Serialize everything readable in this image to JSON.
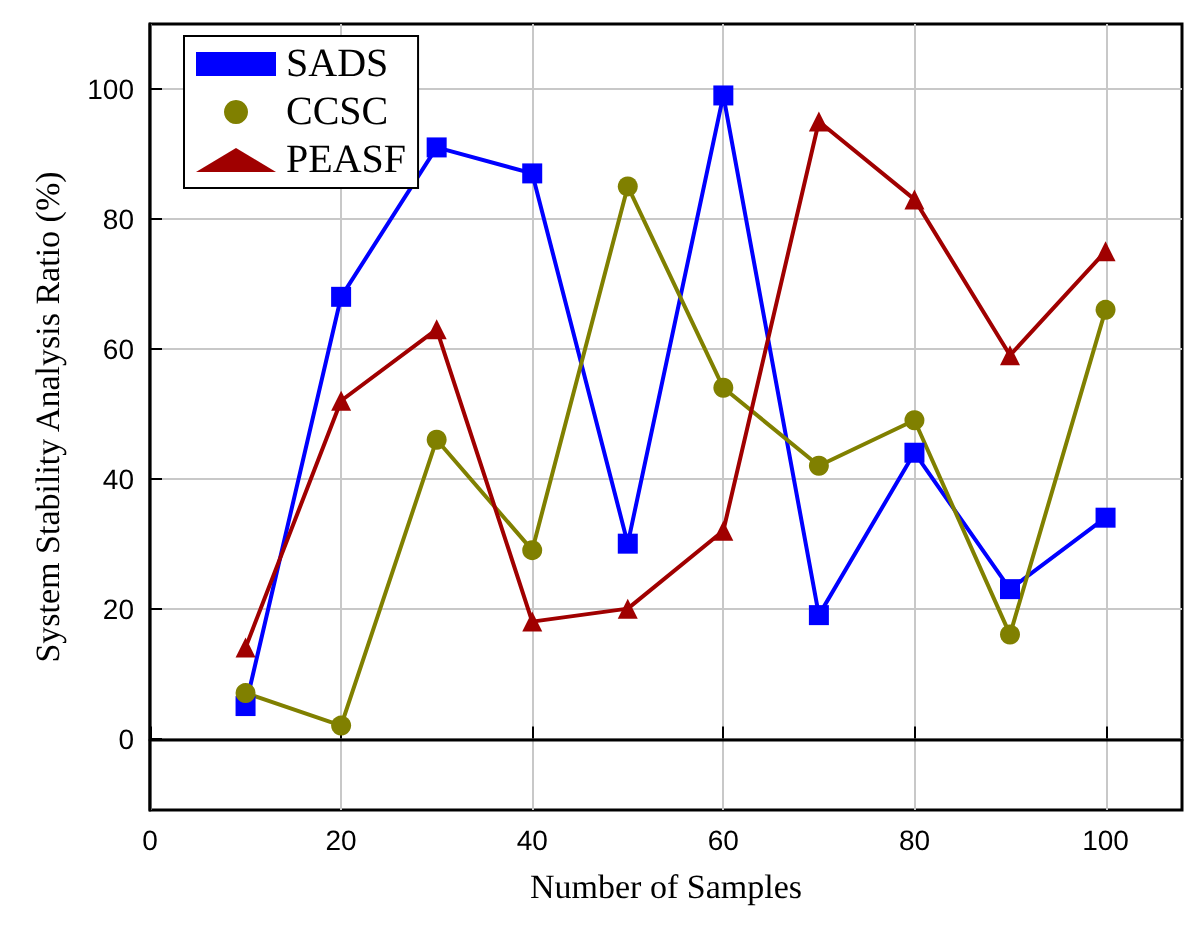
{
  "chart_data": {
    "type": "line",
    "xlabel": "Number of Samples",
    "ylabel": "System Stability Analysis Ratio (%)",
    "x": [
      10,
      20,
      30,
      40,
      50,
      60,
      70,
      80,
      90,
      100
    ],
    "series": [
      {
        "name": "SADS",
        "color": "#0000ff",
        "marker": "square",
        "values": [
          5,
          68,
          91,
          87,
          30,
          99,
          19,
          44,
          23,
          34
        ]
      },
      {
        "name": "CCSC",
        "color": "#808000",
        "marker": "circle",
        "values": [
          7,
          2,
          46,
          29,
          85,
          54,
          42,
          49,
          16,
          66
        ]
      },
      {
        "name": "PEASF",
        "color": "#a00000",
        "marker": "triangle",
        "values": [
          14,
          52,
          63,
          18,
          20,
          32,
          95,
          83,
          59,
          75
        ]
      }
    ],
    "xlim": [
      0,
      108
    ],
    "xticks": [
      0,
      20,
      40,
      60,
      80,
      100
    ],
    "ylim": [
      -11,
      110
    ],
    "yticks": [
      0,
      20,
      40,
      60,
      80,
      100
    ],
    "grid": true,
    "legend": "top left",
    "line_style": "solid"
  }
}
